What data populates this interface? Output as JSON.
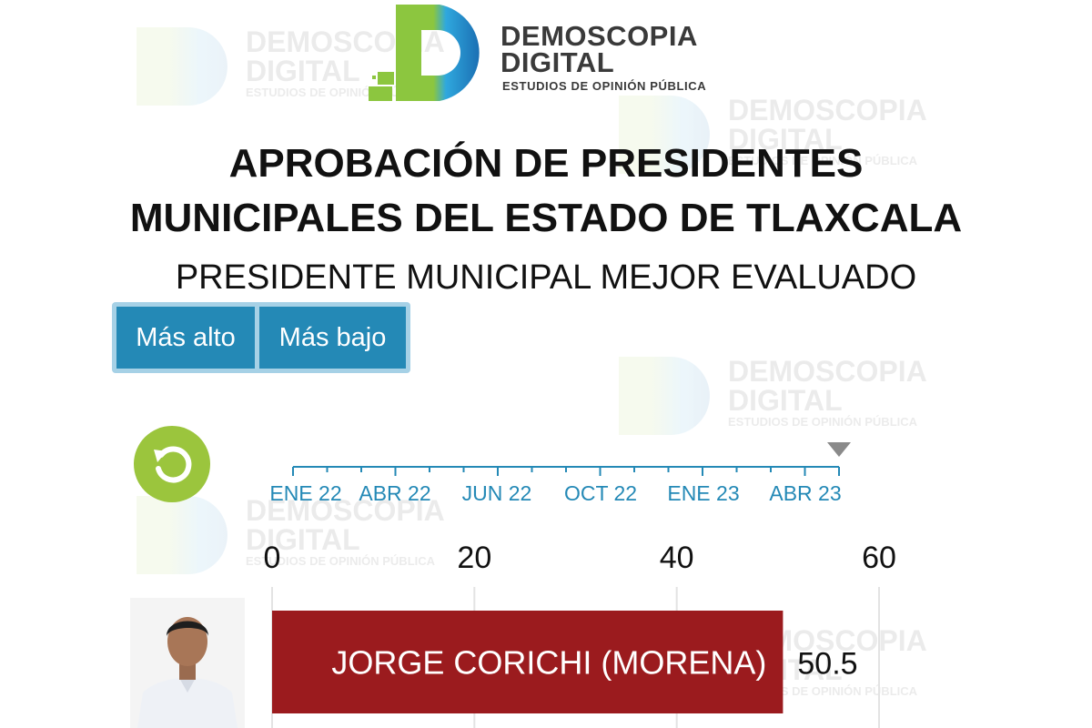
{
  "logo": {
    "title_line1": "DEMOSCOPIA",
    "title_line2": "DIGITAL",
    "subtitle": "ESTUDIOS DE OPINIÓN PÚBLICA"
  },
  "title_line1": "APROBACIÓN DE PRESIDENTES",
  "title_line2": "MUNICIPALES DEL ESTADO DE TLAXCALA",
  "subtitle": "PRESIDENTE MUNICIPAL MEJOR EVALUADO",
  "toggle": {
    "high_label": "Más alto",
    "low_label": "Más bajo"
  },
  "timeline": {
    "labels": [
      "ENE 22",
      "ABR 22",
      "JUN 22",
      "OCT 22",
      "ENE 23",
      "ABR 23"
    ],
    "selected": "ABR 23"
  },
  "colors": {
    "bar": "#9b1b1e",
    "toggle": "#2489b6",
    "timeline": "#2489b6",
    "replay": "#9bc53d",
    "grid": "#e3e3e3"
  },
  "chart_data": {
    "type": "bar",
    "orientation": "horizontal",
    "categories": [
      "JORGE CORICHI (MORENA)"
    ],
    "values": [
      50.5
    ],
    "value_labels": [
      "50.5"
    ],
    "xlim": [
      0,
      60
    ],
    "xticks": [
      0,
      20,
      40,
      60
    ],
    "xtick_labels": [
      "0",
      "20",
      "40",
      "60"
    ],
    "grid": true
  }
}
